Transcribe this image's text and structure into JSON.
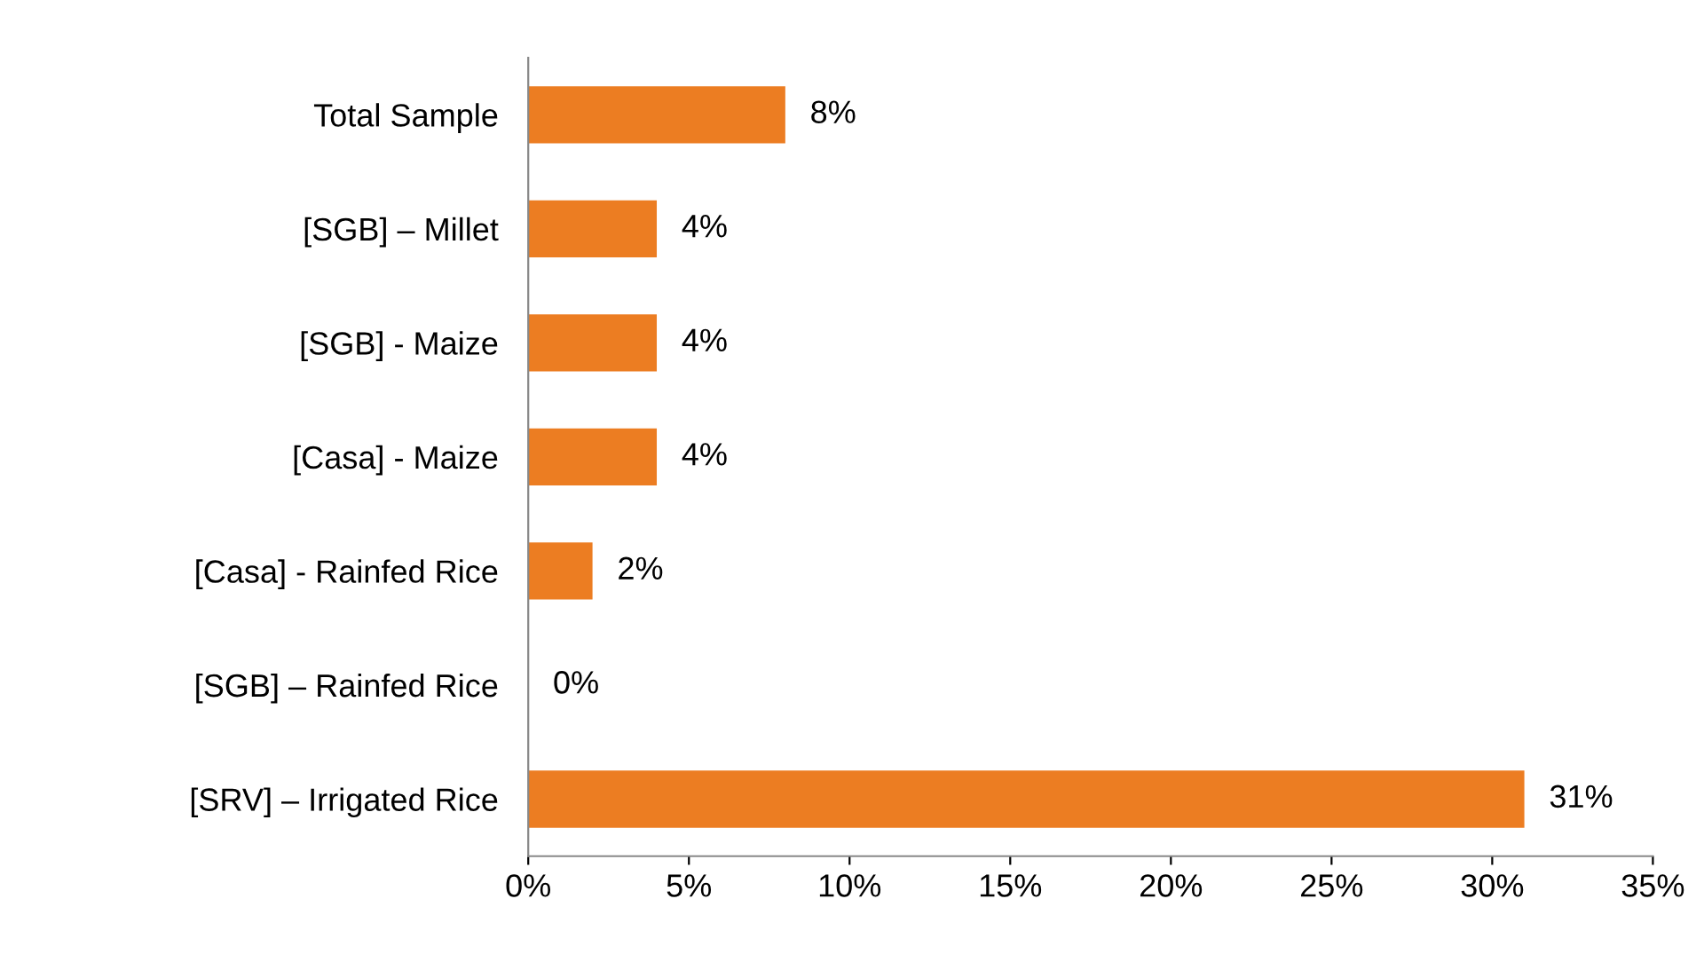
{
  "chart_data": {
    "type": "bar",
    "orientation": "horizontal",
    "categories": [
      "Total Sample",
      "[SGB] – Millet",
      "[SGB] - Maize",
      "[Casa] - Maize",
      "[Casa] - Rainfed Rice",
      "[SGB] – Rainfed Rice",
      "[SRV] – Irrigated Rice"
    ],
    "values": [
      8,
      4,
      4,
      4,
      2,
      0,
      31
    ],
    "value_labels": [
      "8%",
      "4%",
      "4%",
      "4%",
      "2%",
      "0%",
      "31%"
    ],
    "color": "#ec7d22",
    "xlim": [
      0,
      35
    ],
    "xticks": [
      {
        "value": 0,
        "label": "0%"
      },
      {
        "value": 5,
        "label": "5%"
      },
      {
        "value": 10,
        "label": "10%"
      },
      {
        "value": 15,
        "label": "15%"
      },
      {
        "value": 20,
        "label": "20%"
      },
      {
        "value": 25,
        "label": "25%"
      },
      {
        "value": 30,
        "label": "30%"
      },
      {
        "value": 35,
        "label": "35%"
      }
    ],
    "grid": false,
    "legend": false
  }
}
